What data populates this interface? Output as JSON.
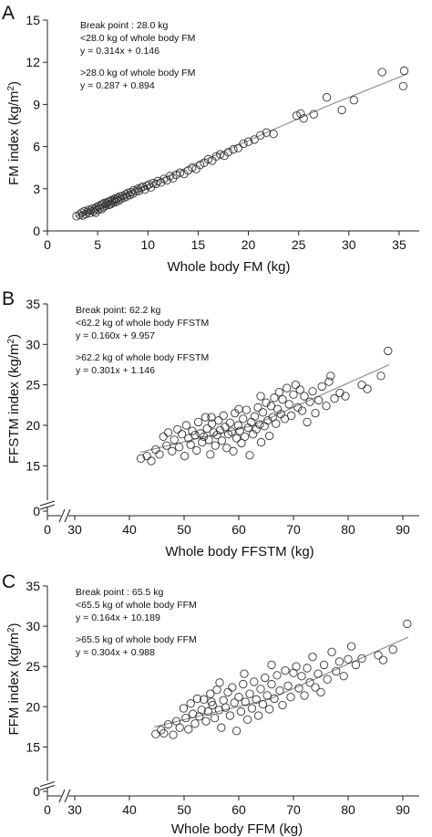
{
  "chart_data": [
    {
      "type": "scatter",
      "panel": "A",
      "xlabel": "Whole body FM (kg)",
      "ylabel": "FM index (kg/m²)",
      "xlim": [
        0,
        37
      ],
      "ylim": [
        0,
        15
      ],
      "xticks": [
        0,
        5,
        10,
        15,
        20,
        25,
        30,
        35
      ],
      "yticks": [
        0,
        3,
        6,
        9,
        12,
        15
      ],
      "axis_break": false,
      "annotation": [
        "Break point : 28.0 kg",
        "<28.0 kg of whole body FM",
        "y = 0.314x + 0.146",
        "",
        ">28.0 kg of whole body FM",
        "y = 0.287 + 0.894"
      ],
      "fits": [
        {
          "x_range": [
            2.8,
            28.0
          ],
          "slope": 0.314,
          "intercept": 0.146
        },
        {
          "x_range": [
            28.0,
            35.8
          ],
          "slope": 0.287,
          "intercept": 0.894
        }
      ],
      "points": [
        [
          2.9,
          1.05
        ],
        [
          3.2,
          1.15
        ],
        [
          3.4,
          1.3
        ],
        [
          3.5,
          1.1
        ],
        [
          3.7,
          1.4
        ],
        [
          3.8,
          1.2
        ],
        [
          4.0,
          1.35
        ],
        [
          4.1,
          1.5
        ],
        [
          4.2,
          1.25
        ],
        [
          4.3,
          1.45
        ],
        [
          4.5,
          1.6
        ],
        [
          4.6,
          1.4
        ],
        [
          4.7,
          1.55
        ],
        [
          4.8,
          1.3
        ],
        [
          4.9,
          1.7
        ],
        [
          5.0,
          1.5
        ],
        [
          5.1,
          1.75
        ],
        [
          5.2,
          1.6
        ],
        [
          5.3,
          1.85
        ],
        [
          5.4,
          1.55
        ],
        [
          5.5,
          1.9
        ],
        [
          5.6,
          1.7
        ],
        [
          5.7,
          2.0
        ],
        [
          5.8,
          1.8
        ],
        [
          5.9,
          1.95
        ],
        [
          6.0,
          2.05
        ],
        [
          6.1,
          1.85
        ],
        [
          6.2,
          2.1
        ],
        [
          6.3,
          1.9
        ],
        [
          6.4,
          2.2
        ],
        [
          6.5,
          2.0
        ],
        [
          6.6,
          2.15
        ],
        [
          6.7,
          2.3
        ],
        [
          6.8,
          2.05
        ],
        [
          6.9,
          2.25
        ],
        [
          7.0,
          2.35
        ],
        [
          7.1,
          2.15
        ],
        [
          7.2,
          2.45
        ],
        [
          7.3,
          2.3
        ],
        [
          7.5,
          2.5
        ],
        [
          7.6,
          2.35
        ],
        [
          7.8,
          2.6
        ],
        [
          7.9,
          2.45
        ],
        [
          8.0,
          2.7
        ],
        [
          8.2,
          2.55
        ],
        [
          8.3,
          2.75
        ],
        [
          8.5,
          2.65
        ],
        [
          8.6,
          2.9
        ],
        [
          8.8,
          2.8
        ],
        [
          9.0,
          3.0
        ],
        [
          9.1,
          2.85
        ],
        [
          9.3,
          3.05
        ],
        [
          9.5,
          3.15
        ],
        [
          9.7,
          2.95
        ],
        [
          9.9,
          3.2
        ],
        [
          10.1,
          3.3
        ],
        [
          10.3,
          3.1
        ],
        [
          10.5,
          3.4
        ],
        [
          10.8,
          3.35
        ],
        [
          11.0,
          3.55
        ],
        [
          11.3,
          3.45
        ],
        [
          11.6,
          3.7
        ],
        [
          11.9,
          3.6
        ],
        [
          12.2,
          3.9
        ],
        [
          12.5,
          3.75
        ],
        [
          12.8,
          4.0
        ],
        [
          13.2,
          4.15
        ],
        [
          13.6,
          4.05
        ],
        [
          14.0,
          4.3
        ],
        [
          14.4,
          4.5
        ],
        [
          14.8,
          4.4
        ],
        [
          15.2,
          4.7
        ],
        [
          15.6,
          4.85
        ],
        [
          16.0,
          5.1
        ],
        [
          16.4,
          5.0
        ],
        [
          16.8,
          5.3
        ],
        [
          17.2,
          5.45
        ],
        [
          17.6,
          5.35
        ],
        [
          18.0,
          5.6
        ],
        [
          18.5,
          5.8
        ],
        [
          19.0,
          5.9
        ],
        [
          19.5,
          6.2
        ],
        [
          20.0,
          6.35
        ],
        [
          20.6,
          6.5
        ],
        [
          21.2,
          6.8
        ],
        [
          21.8,
          7.0
        ],
        [
          22.5,
          6.9
        ],
        [
          24.8,
          8.2
        ],
        [
          25.2,
          8.35
        ],
        [
          25.5,
          8.0
        ],
        [
          26.5,
          8.3
        ],
        [
          27.8,
          9.5
        ],
        [
          29.3,
          8.6
        ],
        [
          30.5,
          9.3
        ],
        [
          33.3,
          11.3
        ],
        [
          35.5,
          11.4
        ],
        [
          35.4,
          10.3
        ]
      ]
    },
    {
      "type": "scatter",
      "panel": "B",
      "xlabel": "Whole body FFSTM (kg)",
      "ylabel": "FFSTM index (kg/m²)",
      "xlim": [
        25,
        93
      ],
      "ylim": [
        13,
        35
      ],
      "xticks": [
        0,
        30,
        40,
        50,
        60,
        70,
        80,
        90
      ],
      "yticks": [
        0,
        15,
        20,
        25,
        30,
        35
      ],
      "axis_break": true,
      "annotation": [
        "Break point: 62.2 kg",
        "<62.2 kg of whole body FFSTM",
        "y = 0.160x + 9.957",
        "",
        ">62.2 kg of whole body FFSTM",
        "y = 0.301x + 1.146"
      ],
      "fits": [
        {
          "x_range": [
            42.0,
            62.2
          ],
          "slope": 0.16,
          "intercept": 9.957
        },
        {
          "x_range": [
            62.2,
            87.5
          ],
          "slope": 0.301,
          "intercept": 1.146
        }
      ],
      "points": [
        [
          42.1,
          15.9
        ],
        [
          43.2,
          16.2
        ],
        [
          44.0,
          15.6
        ],
        [
          44.8,
          17.0
        ],
        [
          45.5,
          16.4
        ],
        [
          46.2,
          18.6
        ],
        [
          46.8,
          17.5
        ],
        [
          47.1,
          19.1
        ],
        [
          47.8,
          16.8
        ],
        [
          48.2,
          18.2
        ],
        [
          48.8,
          19.5
        ],
        [
          49.1,
          17.3
        ],
        [
          49.6,
          18.9
        ],
        [
          50.1,
          16.2
        ],
        [
          50.4,
          20.0
        ],
        [
          50.8,
          18.4
        ],
        [
          51.2,
          17.6
        ],
        [
          51.5,
          19.3
        ],
        [
          52.0,
          18.8
        ],
        [
          52.3,
          16.9
        ],
        [
          52.6,
          20.4
        ],
        [
          53.0,
          19.0
        ],
        [
          53.3,
          17.9
        ],
        [
          53.6,
          18.6
        ],
        [
          53.9,
          21.0
        ],
        [
          54.2,
          19.6
        ],
        [
          54.5,
          18.2
        ],
        [
          54.8,
          16.4
        ],
        [
          55.1,
          20.2
        ],
        [
          55.4,
          19.1
        ],
        [
          55.7,
          17.5
        ],
        [
          56.0,
          18.8
        ],
        [
          56.3,
          20.6
        ],
        [
          56.6,
          19.4
        ],
        [
          56.9,
          18.1
        ],
        [
          57.2,
          21.2
        ],
        [
          57.5,
          19.8
        ],
        [
          57.8,
          17.2
        ],
        [
          58.1,
          18.9
        ],
        [
          58.4,
          20.3
        ],
        [
          58.7,
          19.2
        ],
        [
          59.0,
          16.8
        ],
        [
          59.3,
          21.5
        ],
        [
          59.6,
          18.4
        ],
        [
          59.9,
          20.0
        ],
        [
          60.2,
          19.3
        ],
        [
          60.5,
          17.8
        ],
        [
          60.8,
          20.8
        ],
        [
          61.1,
          18.6
        ],
        [
          61.4,
          21.9
        ],
        [
          61.7,
          19.7
        ],
        [
          62.0,
          16.3
        ],
        [
          62.3,
          20.4
        ],
        [
          62.6,
          18.9
        ],
        [
          62.9,
          21.1
        ],
        [
          63.2,
          19.5
        ],
        [
          63.5,
          22.2
        ],
        [
          63.8,
          20.1
        ],
        [
          64.1,
          17.9
        ],
        [
          64.4,
          21.6
        ],
        [
          64.7,
          19.9
        ],
        [
          65.0,
          22.8
        ],
        [
          65.3,
          20.6
        ],
        [
          65.6,
          18.7
        ],
        [
          65.9,
          22.4
        ],
        [
          66.2,
          21.0
        ],
        [
          66.5,
          23.4
        ],
        [
          66.8,
          20.2
        ],
        [
          67.1,
          22.0
        ],
        [
          67.4,
          24.1
        ],
        [
          67.7,
          21.4
        ],
        [
          68.0,
          23.2
        ],
        [
          68.4,
          20.8
        ],
        [
          68.8,
          24.6
        ],
        [
          69.2,
          22.6
        ],
        [
          69.6,
          21.2
        ],
        [
          70.0,
          23.8
        ],
        [
          70.4,
          25.0
        ],
        [
          70.8,
          22.2
        ],
        [
          71.2,
          24.4
        ],
        [
          71.6,
          21.8
        ],
        [
          72.0,
          23.6
        ],
        [
          72.5,
          20.4
        ],
        [
          73.0,
          22.9
        ],
        [
          73.5,
          24.2
        ],
        [
          74.0,
          21.5
        ],
        [
          74.6,
          23.1
        ],
        [
          75.2,
          24.8
        ],
        [
          76.0,
          22.4
        ],
        [
          76.5,
          25.4
        ],
        [
          76.8,
          26.1
        ],
        [
          77.5,
          23.3
        ],
        [
          78.5,
          24.0
        ],
        [
          79.5,
          23.6
        ],
        [
          82.5,
          25.0
        ],
        [
          83.5,
          24.5
        ],
        [
          86.0,
          26.1
        ],
        [
          87.3,
          29.2
        ],
        [
          55.0,
          21.0
        ],
        [
          60.0,
          22.0
        ],
        [
          64.0,
          23.6
        ]
      ]
    },
    {
      "type": "scatter",
      "panel": "C",
      "xlabel": "Whole body FFM (kg)",
      "ylabel": "FFM index (kg/m²)",
      "xlim": [
        25,
        93
      ],
      "ylim": [
        13,
        35
      ],
      "xticks": [
        0,
        30,
        40,
        50,
        60,
        70,
        80,
        90
      ],
      "yticks": [
        0,
        15,
        20,
        25,
        30,
        35
      ],
      "axis_break": true,
      "annotation": [
        "Break point : 65.5 kg",
        "<65.5 kg of whole body FFM",
        "y = 0.164x + 10.189",
        "",
        ">65.5 kg of whole body FFM",
        "y = 0.304x + 0.988"
      ],
      "fits": [
        {
          "x_range": [
            44.5,
            65.5
          ],
          "slope": 0.164,
          "intercept": 10.189
        },
        {
          "x_range": [
            65.5,
            91.0
          ],
          "slope": 0.304,
          "intercept": 0.988
        }
      ],
      "points": [
        [
          44.8,
          16.6
        ],
        [
          45.8,
          17.1
        ],
        [
          46.3,
          16.7
        ],
        [
          47.1,
          17.8
        ],
        [
          48.0,
          16.5
        ],
        [
          48.6,
          18.2
        ],
        [
          49.2,
          17.4
        ],
        [
          49.9,
          19.8
        ],
        [
          50.3,
          18.6
        ],
        [
          50.8,
          17.2
        ],
        [
          51.2,
          20.4
        ],
        [
          51.6,
          19.1
        ],
        [
          52.0,
          17.9
        ],
        [
          52.4,
          21.0
        ],
        [
          52.8,
          18.8
        ],
        [
          53.2,
          19.6
        ],
        [
          53.6,
          20.9
        ],
        [
          54.0,
          18.2
        ],
        [
          54.4,
          19.4
        ],
        [
          54.8,
          21.6
        ],
        [
          55.2,
          20.2
        ],
        [
          55.6,
          18.6
        ],
        [
          56.0,
          22.1
        ],
        [
          56.4,
          19.6
        ],
        [
          56.8,
          17.4
        ],
        [
          57.2,
          20.8
        ],
        [
          57.6,
          19.9
        ],
        [
          58.0,
          21.8
        ],
        [
          58.4,
          18.9
        ],
        [
          58.8,
          22.4
        ],
        [
          59.2,
          20.5
        ],
        [
          59.6,
          17.0
        ],
        [
          60.0,
          21.2
        ],
        [
          60.4,
          19.4
        ],
        [
          60.8,
          22.8
        ],
        [
          61.2,
          20.6
        ],
        [
          61.6,
          18.4
        ],
        [
          62.0,
          21.6
        ],
        [
          62.4,
          19.8
        ],
        [
          62.8,
          23.1
        ],
        [
          63.2,
          20.9
        ],
        [
          63.6,
          18.9
        ],
        [
          64.0,
          22.2
        ],
        [
          64.4,
          20.3
        ],
        [
          64.8,
          23.6
        ],
        [
          65.2,
          21.4
        ],
        [
          65.6,
          19.7
        ],
        [
          66.0,
          22.8
        ],
        [
          66.5,
          21.0
        ],
        [
          67.0,
          23.9
        ],
        [
          67.5,
          22.0
        ],
        [
          68.0,
          20.2
        ],
        [
          68.5,
          24.5
        ],
        [
          69.0,
          22.6
        ],
        [
          69.5,
          21.2
        ],
        [
          70.0,
          24.2
        ],
        [
          70.5,
          25.0
        ],
        [
          71.0,
          22.3
        ],
        [
          71.5,
          23.8
        ],
        [
          72.0,
          21.4
        ],
        [
          72.5,
          24.8
        ],
        [
          73.0,
          23.0
        ],
        [
          73.5,
          26.2
        ],
        [
          74.0,
          22.4
        ],
        [
          74.5,
          24.1
        ],
        [
          75.0,
          21.8
        ],
        [
          75.6,
          25.2
        ],
        [
          76.2,
          23.4
        ],
        [
          77.0,
          26.8
        ],
        [
          77.8,
          24.4
        ],
        [
          78.4,
          25.6
        ],
        [
          79.2,
          23.8
        ],
        [
          80.0,
          25.9
        ],
        [
          80.6,
          27.5
        ],
        [
          81.4,
          25.2
        ],
        [
          82.5,
          26.0
        ],
        [
          85.5,
          26.4
        ],
        [
          86.4,
          25.8
        ],
        [
          88.2,
          27.1
        ],
        [
          90.8,
          30.3
        ],
        [
          56.5,
          23.0
        ],
        [
          61.0,
          24.1
        ],
        [
          66.0,
          25.2
        ],
        [
          55.0,
          20.6
        ]
      ]
    }
  ]
}
